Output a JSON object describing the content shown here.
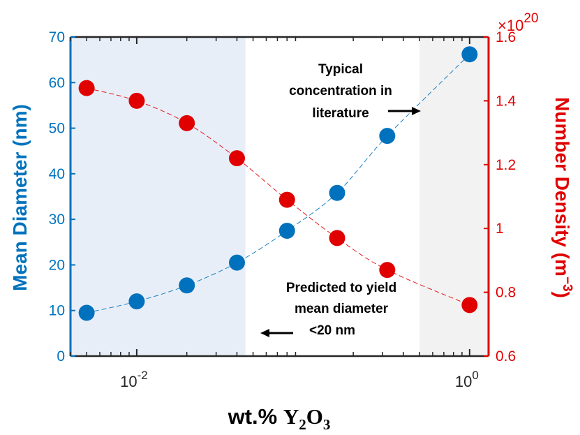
{
  "chart_data": {
    "type": "scatter",
    "x_scale": "log",
    "x": [
      0.005,
      0.01,
      0.02,
      0.04,
      0.08,
      0.16,
      0.32,
      1.0
    ],
    "xlim": [
      0.004,
      1.3
    ],
    "x_ticks": [
      {
        "value": 0.01,
        "base": "10",
        "exp": "-2"
      },
      {
        "value": 1.0,
        "base": "10",
        "exp": "0"
      }
    ],
    "xlabel": {
      "prefix": "wt.% ",
      "main": "Y",
      "sub1": "2",
      "mid": "O",
      "sub2": "3"
    },
    "series": [
      {
        "name": "Mean Diameter (nm)",
        "axis": "left",
        "color": "#0072BD",
        "values": [
          9.5,
          12,
          15.5,
          20.5,
          27.5,
          35.8,
          48.3,
          66.2
        ]
      },
      {
        "name": "Number Density (m⁻³)",
        "axis": "right",
        "color": "#E00000",
        "values": [
          1.44,
          1.4,
          1.33,
          1.22,
          1.09,
          0.97,
          0.87,
          0.76
        ]
      }
    ],
    "left_axis": {
      "label": "Mean Diameter (nm)",
      "ylim": [
        0,
        70
      ],
      "ticks": [
        "0",
        "10",
        "20",
        "30",
        "40",
        "50",
        "60",
        "70"
      ],
      "color": "#0072BD"
    },
    "right_axis": {
      "label": "Number Density (m",
      "label_sup": "−3",
      "label_end": ")",
      "ylim": [
        0.6,
        1.6
      ],
      "ticks": [
        "0.6",
        "0.8",
        "1",
        "1.2",
        "1.4",
        "1.6"
      ],
      "multiplier_base": "×10",
      "multiplier_exp": "20",
      "color": "#E00000"
    },
    "regions": [
      {
        "name": "predicted",
        "from": 0.004,
        "to": 0.045,
        "color": "#E8EEF8"
      },
      {
        "name": "typical",
        "from": 0.5,
        "to": 1.3,
        "color": "#F2F2F2"
      }
    ],
    "annotations": [
      {
        "lines": [
          "Typical",
          "concentration in",
          "literature"
        ],
        "arrow": "right"
      },
      {
        "lines": [
          "Predicted to yield",
          "mean diameter",
          "<20 nm"
        ],
        "arrow": "left"
      }
    ]
  }
}
